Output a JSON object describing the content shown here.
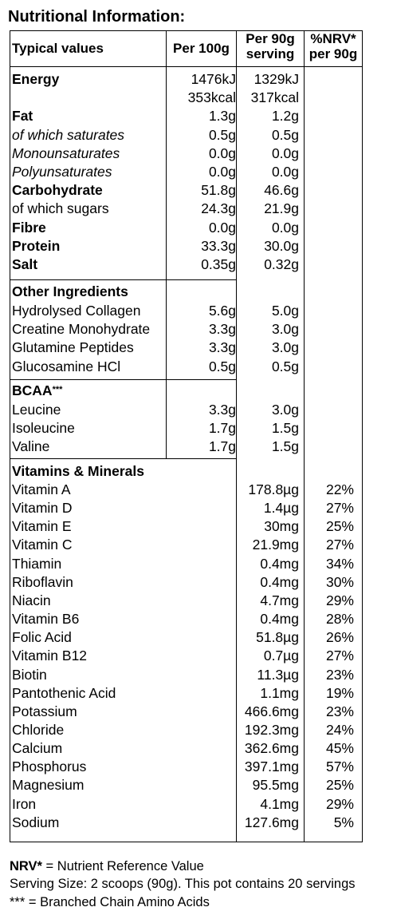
{
  "title": "Nutritional Information:",
  "headers": {
    "typical": "Typical values",
    "per100": "Per 100g",
    "per90_line1": "Per 90g",
    "per90_line2": "serving",
    "nrv_line1": "%NRV*",
    "nrv_line2": "per 90g"
  },
  "nutrition": [
    {
      "name": "Energy",
      "per100": "1476kJ",
      "per90": "1329kJ",
      "style": "bold"
    },
    {
      "name": "",
      "per100": "353kcal",
      "per90": "317kcal",
      "style": ""
    },
    {
      "name": "Fat",
      "per100": "1.3g",
      "per90": "1.2g",
      "style": "bold"
    },
    {
      "name": "of which saturates",
      "per100": "0.5g",
      "per90": "0.5g",
      "style": "italic"
    },
    {
      "name": "Monounsaturates",
      "per100": "0.0g",
      "per90": "0.0g",
      "style": "italic"
    },
    {
      "name": "Polyunsaturates",
      "per100": "0.0g",
      "per90": "0.0g",
      "style": "italic"
    },
    {
      "name": "Carbohydrate",
      "per100": "51.8g",
      "per90": "46.6g",
      "style": "bold"
    },
    {
      "name": "of which sugars",
      "per100": "24.3g",
      "per90": "21.9g",
      "style": ""
    },
    {
      "name": "Fibre",
      "per100": "0.0g",
      "per90": "0.0g",
      "style": "bold"
    },
    {
      "name": "Protein",
      "per100": "33.3g",
      "per90": "30.0g",
      "style": "bold"
    },
    {
      "name": "Salt",
      "per100": "0.35g",
      "per90": "0.32g",
      "style": "bold"
    }
  ],
  "other": {
    "heading": "Other Ingredients",
    "rows": [
      {
        "name": "Hydrolysed Collagen",
        "per100": "5.6g",
        "per90": "5.0g"
      },
      {
        "name": "Creatine Monohydrate",
        "per100": "3.3g",
        "per90": "3.0g"
      },
      {
        "name": "Glutamine Peptides",
        "per100": "3.3g",
        "per90": "3.0g"
      },
      {
        "name": "Glucosamine HCl",
        "per100": "0.5g",
        "per90": "0.5g"
      }
    ]
  },
  "bcaa": {
    "heading": "BCAA",
    "heading_mark": "***",
    "rows": [
      {
        "name": "Leucine",
        "per100": "3.3g",
        "per90": "3.0g"
      },
      {
        "name": "Isoleucine",
        "per100": "1.7g",
        "per90": "1.5g"
      },
      {
        "name": "Valine",
        "per100": "1.7g",
        "per90": "1.5g"
      }
    ]
  },
  "vitamins": {
    "heading": "Vitamins & Minerals",
    "rows": [
      {
        "name": "Vitamin A",
        "per90": "178.8µg",
        "nrv": "22%"
      },
      {
        "name": "Vitamin D",
        "per90": "1.4µg",
        "nrv": "27%"
      },
      {
        "name": "Vitamin E",
        "per90": "30mg",
        "nrv": "25%"
      },
      {
        "name": "Vitamin C",
        "per90": "21.9mg",
        "nrv": "27%"
      },
      {
        "name": "Thiamin",
        "per90": "0.4mg",
        "nrv": "34%"
      },
      {
        "name": "Riboflavin",
        "per90": "0.4mg",
        "nrv": "30%"
      },
      {
        "name": "Niacin",
        "per90": "4.7mg",
        "nrv": "29%"
      },
      {
        "name": "Vitamin B6",
        "per90": "0.4mg",
        "nrv": "28%"
      },
      {
        "name": "Folic Acid",
        "per90": "51.8µg",
        "nrv": "26%"
      },
      {
        "name": "Vitamin B12",
        "per90": "0.7µg",
        "nrv": "27%"
      },
      {
        "name": "Biotin",
        "per90": "11.3µg",
        "nrv": "23%"
      },
      {
        "name": "Pantothenic Acid",
        "per90": "1.1mg",
        "nrv": "19%"
      },
      {
        "name": "Potassium",
        "per90": "466.6mg",
        "nrv": "23%"
      },
      {
        "name": "Chloride",
        "per90": "192.3mg",
        "nrv": "24%"
      },
      {
        "name": "Calcium",
        "per90": "362.6mg",
        "nrv": "45%"
      },
      {
        "name": "Phosphorus",
        "per90": "397.1mg",
        "nrv": "57%"
      },
      {
        "name": "Magnesium",
        "per90": "95.5mg",
        "nrv": "25%"
      },
      {
        "name": "Iron",
        "per90": "4.1mg",
        "nrv": "29%"
      },
      {
        "name": "Sodium",
        "per90": "127.6mg",
        "nrv": "5%"
      }
    ]
  },
  "footer": {
    "nrv_term": "NRV*",
    "nrv_def": " = Nutrient Reference Value",
    "serving": "Serving Size: 2 scoops (90g). This pot contains 20 servings",
    "bcaa_note": "*** = Branched Chain Amino Acids"
  }
}
